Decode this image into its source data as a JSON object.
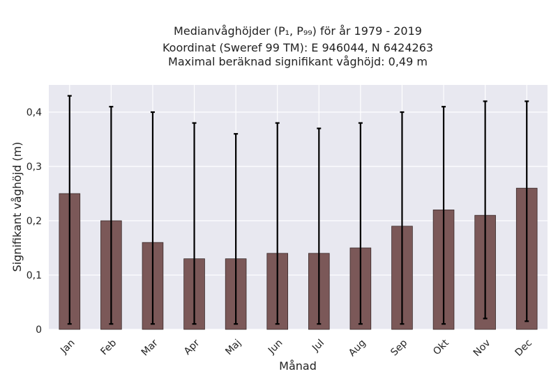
{
  "chart_data": {
    "type": "bar",
    "title_lines": [
      "Medianvåghöjder (P₁, P₉₉) för år 1979 - 2019",
      "Koordinat (Sweref 99 TM): E 946044, N 6424263",
      "Maximal beräknad signifikant våghöjd: 0,49 m"
    ],
    "xlabel": "Månad",
    "ylabel": "Signifikant våghöjd (m)",
    "categories": [
      "Jan",
      "Feb",
      "Mar",
      "Apr",
      "Maj",
      "Jun",
      "Jul",
      "Aug",
      "Sep",
      "Okt",
      "Nov",
      "Dec"
    ],
    "values": [
      0.25,
      0.2,
      0.16,
      0.13,
      0.13,
      0.14,
      0.14,
      0.15,
      0.19,
      0.22,
      0.21,
      0.26
    ],
    "p1": [
      0.01,
      0.01,
      0.01,
      0.01,
      0.01,
      0.01,
      0.01,
      0.01,
      0.01,
      0.01,
      0.02,
      0.015
    ],
    "p99": [
      0.43,
      0.41,
      0.4,
      0.38,
      0.36,
      0.38,
      0.37,
      0.38,
      0.4,
      0.41,
      0.42,
      0.42
    ],
    "ylim": [
      0,
      0.45
    ],
    "yticks": [
      0,
      0.1,
      0.2,
      0.3,
      0.4
    ],
    "ytick_labels": [
      "0",
      "0,1",
      "0,2",
      "0,3",
      "0,4"
    ],
    "grid": true,
    "colors": {
      "bar": "#7b5858",
      "bar_edge": "#3a2a2a",
      "plot_bg": "#e8e8f0",
      "grid": "#ffffff",
      "errorbar": "#000000"
    }
  }
}
